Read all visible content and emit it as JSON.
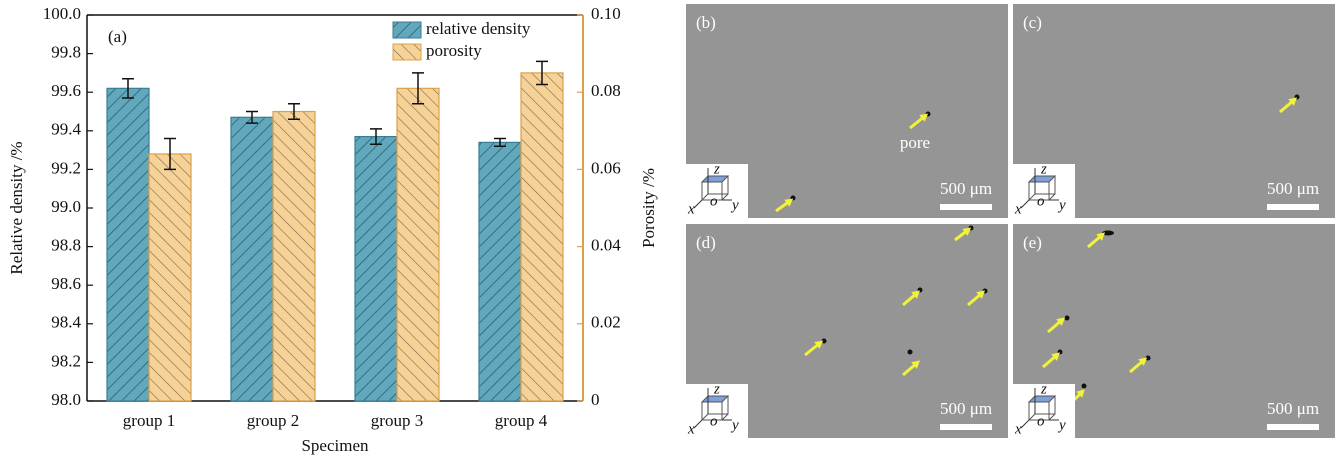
{
  "chart_data": {
    "type": "bar",
    "panel_label": "(a)",
    "xlabel": "Specimen",
    "ylabel": "Relative density /%",
    "y2label": "Porosity /%",
    "categories": [
      "group 1",
      "group 2",
      "group 3",
      "group 4"
    ],
    "series": [
      {
        "name": "relative density",
        "color": "#62a8bd",
        "values": [
          99.62,
          99.47,
          99.37,
          99.34
        ],
        "errors": [
          0.05,
          0.03,
          0.04,
          0.02
        ]
      },
      {
        "name": "porosity",
        "color": "#f6d297",
        "axis": "y2",
        "values": [
          0.064,
          0.075,
          0.081,
          0.085
        ],
        "errors": [
          0.004,
          0.002,
          0.004,
          0.003
        ]
      }
    ],
    "ylim": [
      98,
      100
    ],
    "yticks": [
      {
        "value": 98,
        "label": "98.0"
      },
      98.2,
      98.4,
      98.6,
      98.8,
      {
        "value": 99,
        "label": "99.0"
      },
      99.2,
      99.4,
      99.6,
      99.8,
      {
        "value": 100,
        "label": "100.0"
      }
    ],
    "y2lim": [
      0,
      0.1
    ],
    "y2ticks": [
      0,
      0.02,
      0.04,
      0.06,
      0.08,
      {
        "value": 0.1,
        "label": "0.10"
      }
    ],
    "legend": "upper right"
  },
  "micrographs": [
    {
      "label": "(b)",
      "scale_bar": "500 μm",
      "annotation": "pore"
    },
    {
      "label": "(c)",
      "scale_bar": "500 μm"
    },
    {
      "label": "(d)",
      "scale_bar": "500 μm"
    },
    {
      "label": "(e)",
      "scale_bar": "500 μm"
    }
  ],
  "axes_glyph": {
    "x": "x",
    "y": "y",
    "z": "z",
    "origin": "o"
  }
}
